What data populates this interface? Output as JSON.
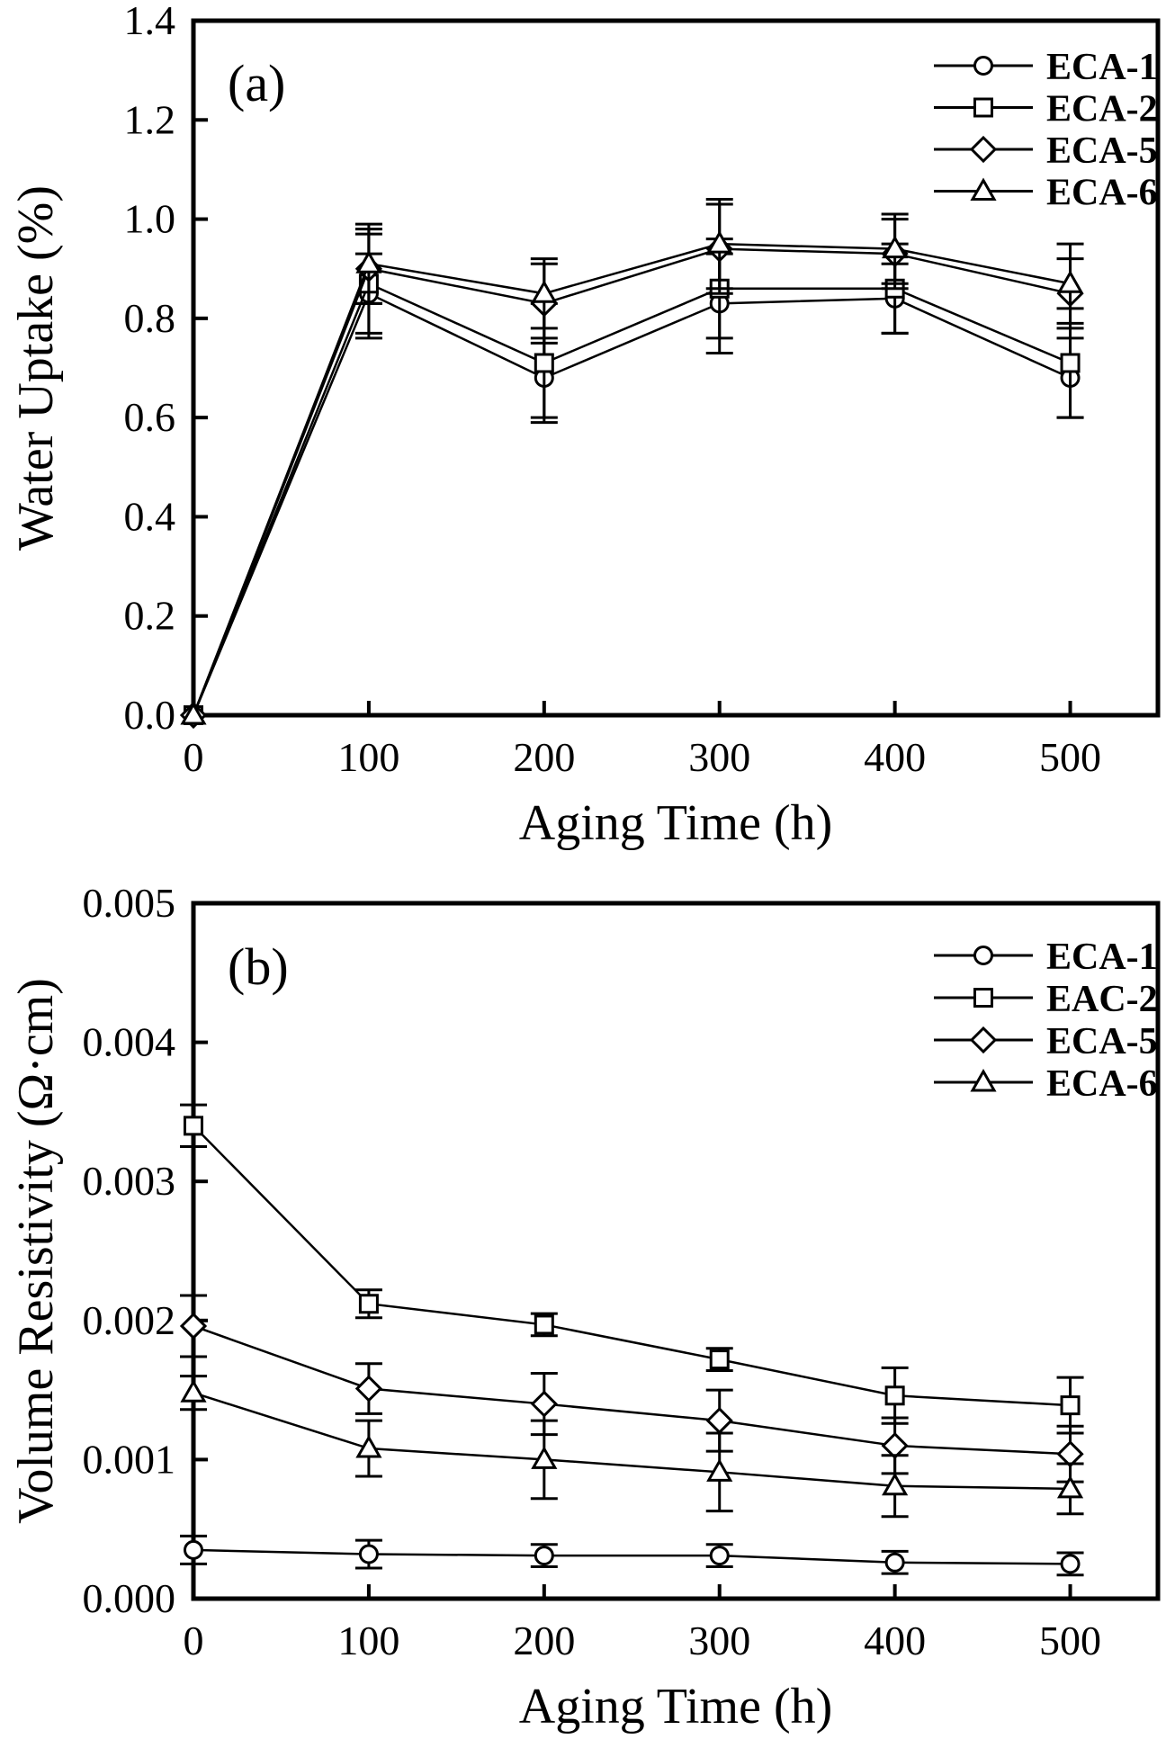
{
  "figure": {
    "description": "Two stacked line charts with error bars comparing four conductive adhesive samples during aging"
  },
  "chart_data": [
    {
      "type": "line",
      "panel_label": "(a)",
      "xlabel": "Aging Time (h)",
      "ylabel": "Water Uptake (%)",
      "xlim": [
        0,
        550
      ],
      "ylim": [
        0,
        1.4
      ],
      "xtick_values": [
        0,
        100,
        200,
        300,
        400,
        500
      ],
      "xtick_labels": [
        "0",
        "100",
        "200",
        "300",
        "400",
        "500"
      ],
      "ytick_values": [
        0.0,
        0.2,
        0.4,
        0.6,
        0.8,
        1.0,
        1.2,
        1.4
      ],
      "ytick_labels": [
        "0.0",
        "0.2",
        "0.4",
        "0.6",
        "0.8",
        "1.0",
        "1.2",
        "1.4"
      ],
      "grid": false,
      "legend_position": "top-right",
      "line_color": "#000000",
      "x": [
        0,
        100,
        200,
        300,
        400,
        500
      ],
      "series": [
        {
          "name": "ECA-1",
          "marker": "circle",
          "values": [
            0,
            0.85,
            0.68,
            0.83,
            0.84,
            0.68
          ],
          "errors": [
            0,
            0.08,
            0.08,
            0.1,
            0.07,
            0.08
          ]
        },
        {
          "name": "ECA-2",
          "marker": "square",
          "values": [
            0,
            0.87,
            0.71,
            0.86,
            0.86,
            0.71
          ],
          "errors": [
            0,
            0.11,
            0.12,
            0.1,
            0.09,
            0.11
          ]
        },
        {
          "name": "ECA-5",
          "marker": "diamond",
          "values": [
            0,
            0.9,
            0.83,
            0.94,
            0.93,
            0.85
          ],
          "errors": [
            0,
            0.07,
            0.08,
            0.09,
            0.07,
            0.07
          ]
        },
        {
          "name": "ECA-6",
          "marker": "triangle",
          "values": [
            0,
            0.91,
            0.85,
            0.95,
            0.94,
            0.87
          ],
          "errors": [
            0,
            0.08,
            0.07,
            0.09,
            0.07,
            0.08
          ]
        }
      ]
    },
    {
      "type": "line",
      "panel_label": "(b)",
      "xlabel": "Aging Time (h)",
      "ylabel": "Volume Resistivity (Ω·cm)",
      "xlim": [
        0,
        550
      ],
      "ylim": [
        0,
        0.005
      ],
      "xtick_values": [
        0,
        100,
        200,
        300,
        400,
        500
      ],
      "xtick_labels": [
        "0",
        "100",
        "200",
        "300",
        "400",
        "500"
      ],
      "ytick_values": [
        0.0,
        0.001,
        0.002,
        0.003,
        0.004,
        0.005
      ],
      "ytick_labels": [
        "0.000",
        "0.001",
        "0.002",
        "0.003",
        "0.004",
        "0.005"
      ],
      "grid": false,
      "legend_position": "top-right",
      "line_color": "#000000",
      "x": [
        0,
        100,
        200,
        300,
        400,
        500
      ],
      "series": [
        {
          "name": "ECA-1",
          "marker": "circle",
          "values": [
            0.00035,
            0.00032,
            0.00031,
            0.00031,
            0.00026,
            0.00025
          ],
          "errors": [
            0.0001,
            0.0001,
            8e-05,
            8e-05,
            8e-05,
            8e-05
          ]
        },
        {
          "name": "EAC-2",
          "marker": "square",
          "values": [
            0.0034,
            0.00212,
            0.00197,
            0.00172,
            0.00146,
            0.00139
          ],
          "errors": [
            0.00015,
            0.0001,
            8e-05,
            8e-05,
            0.0002,
            0.0002
          ]
        },
        {
          "name": "ECA-5",
          "marker": "diamond",
          "values": [
            0.00196,
            0.00151,
            0.0014,
            0.00128,
            0.0011,
            0.00104
          ],
          "errors": [
            0.00022,
            0.00018,
            0.00022,
            0.00022,
            0.0002,
            0.0002
          ]
        },
        {
          "name": "ECA-6",
          "marker": "triangle",
          "values": [
            0.00148,
            0.00108,
            0.001,
            0.00091,
            0.00081,
            0.00079
          ],
          "errors": [
            0.00012,
            0.0002,
            0.00028,
            0.00028,
            0.00022,
            0.00018
          ]
        }
      ]
    }
  ]
}
